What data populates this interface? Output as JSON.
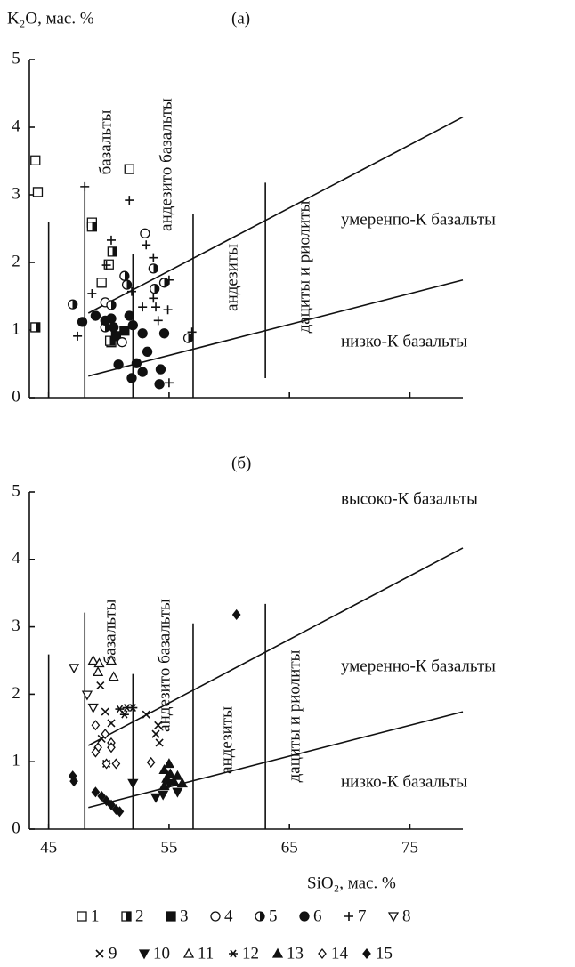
{
  "chart_data": [
    {
      "type": "scatter",
      "panel_label": "(a)",
      "ylabel": "K₂O, мас. %",
      "xlim": [
        43.4,
        79.4
      ],
      "ylim": [
        0,
        5
      ],
      "yticks": [
        0,
        1,
        2,
        3,
        4,
        5
      ],
      "xticks": [
        45,
        55,
        65,
        75
      ],
      "xtick_labels": false,
      "annotations": [
        "базальты",
        "андезито базальты",
        "андезиты",
        "дациты и риолиты",
        "умеренпо-К базальты",
        "низко-К базальты"
      ],
      "boundaries": [
        {
          "x": [
            45,
            45
          ],
          "y": [
            0,
            2.6
          ]
        },
        {
          "x": [
            48,
            48
          ],
          "y": [
            0,
            3.18
          ]
        },
        {
          "x": [
            52,
            52
          ],
          "y": [
            0,
            2.13
          ]
        },
        {
          "x": [
            57,
            57
          ],
          "y": [
            0,
            2.72
          ]
        },
        {
          "x": [
            63,
            63
          ],
          "y": [
            0.29,
            3.18
          ]
        },
        {
          "x": [
            48.3,
            79.4
          ],
          "y": [
            1.25,
            4.15
          ]
        },
        {
          "x": [
            48.3,
            79.4
          ],
          "y": [
            0.32,
            1.74
          ]
        }
      ],
      "series": [
        {
          "name": "1",
          "marker": "square",
          "fill": "open",
          "color": "#111",
          "x": [
            43.9,
            44.1,
            48.6,
            51.7,
            49.4,
            50.2,
            50.0
          ],
          "y": [
            3.51,
            3.04,
            2.59,
            3.38,
            1.7,
            0.82,
            1.97
          ]
        },
        {
          "name": "2",
          "marker": "square",
          "fill": "half",
          "color": "#111",
          "x": [
            43.9,
            48.6,
            50.3,
            50.1
          ],
          "y": [
            1.04,
            2.53,
            2.16,
            0.84
          ]
        },
        {
          "name": "3",
          "marker": "square",
          "fill": "filled",
          "color": "#111",
          "x": [
            51.3,
            50.6
          ],
          "y": [
            0.99,
            0.91
          ]
        },
        {
          "name": "4",
          "marker": "circle",
          "fill": "open",
          "color": "#111",
          "x": [
            53.0,
            49.7,
            51.1
          ],
          "y": [
            2.43,
            1.41,
            0.82
          ]
        },
        {
          "name": "5",
          "marker": "circle",
          "fill": "half",
          "color": "#111",
          "x": [
            47.0,
            51.3,
            51.5,
            53.7,
            53.8,
            54.6,
            50.2,
            56.6,
            49.7
          ],
          "y": [
            1.38,
            1.8,
            1.67,
            1.91,
            1.61,
            1.7,
            1.37,
            0.88,
            1.04
          ]
        },
        {
          "name": "6",
          "marker": "circle",
          "fill": "filled",
          "color": "#111",
          "x": [
            47.8,
            48.9,
            50.2,
            51.7,
            52.0,
            52.8,
            54.6,
            50.8,
            51.9,
            52.8,
            53.2,
            54.3,
            54.2,
            52.3,
            49.7,
            50.4
          ],
          "y": [
            1.12,
            1.21,
            1.17,
            1.21,
            1.07,
            0.95,
            0.95,
            0.49,
            0.29,
            0.38,
            0.68,
            0.42,
            0.2,
            0.51,
            1.14,
            1.04
          ]
        },
        {
          "name": "7",
          "marker": "plus",
          "fill": "open",
          "color": "#111",
          "x": [
            48.0,
            51.7,
            50.2,
            49.8,
            53.1,
            48.6,
            51.9,
            47.4,
            53.9,
            54.1,
            53.7,
            54.9,
            55.0,
            53.7,
            56.9,
            55.0,
            52.8
          ],
          "y": [
            3.12,
            2.92,
            2.33,
            1.96,
            2.26,
            1.54,
            1.57,
            0.91,
            1.34,
            1.14,
            1.47,
            1.3,
            1.74,
            2.07,
            0.97,
            0.22,
            1.34
          ]
        }
      ]
    },
    {
      "type": "scatter",
      "panel_label": "(б)",
      "xlabel": "SiO₂, мас. %",
      "xlim": [
        43.4,
        79.4
      ],
      "ylim": [
        0,
        5
      ],
      "yticks": [
        0,
        1,
        2,
        3,
        4,
        5
      ],
      "xticks": [
        45,
        55,
        65,
        75
      ],
      "xtick_labels": true,
      "annotations": [
        "высоко-К базальты",
        "базальты",
        "андезито базальты",
        "андезиты",
        "дациты и риолиты",
        "умеренно-К базальты",
        "низко-К базальты"
      ],
      "boundaries": [
        {
          "x": [
            45,
            45
          ],
          "y": [
            0,
            2.59
          ]
        },
        {
          "x": [
            48,
            48
          ],
          "y": [
            0,
            3.21
          ]
        },
        {
          "x": [
            52,
            52
          ],
          "y": [
            0,
            2.3
          ]
        },
        {
          "x": [
            57,
            57
          ],
          "y": [
            0,
            3.05
          ]
        },
        {
          "x": [
            63,
            63
          ],
          "y": [
            0,
            3.34
          ]
        },
        {
          "x": [
            48.3,
            79.4
          ],
          "y": [
            1.24,
            4.17
          ]
        },
        {
          "x": [
            48.3,
            79.4
          ],
          "y": [
            0.32,
            1.74
          ]
        }
      ],
      "series": [
        {
          "name": "8",
          "marker": "tri-down",
          "fill": "open",
          "color": "#111",
          "x": [
            47.1,
            48.2,
            48.7
          ],
          "y": [
            2.39,
            1.99,
            1.8
          ]
        },
        {
          "name": "9",
          "marker": "cross",
          "fill": "open",
          "color": "#111",
          "x": [
            49.4,
            50.2,
            49.8,
            53.1,
            54.1,
            54.2,
            53.9,
            49.3,
            49.7
          ],
          "y": [
            1.34,
            1.57,
            0.97,
            1.7,
            1.54,
            1.28,
            1.41,
            2.13,
            1.74
          ]
        },
        {
          "name": "10",
          "marker": "tri-down",
          "fill": "filled",
          "color": "#111",
          "x": [
            52.0,
            54.5,
            55.0,
            55.7,
            53.9
          ],
          "y": [
            0.68,
            0.51,
            0.68,
            0.55,
            0.47
          ]
        },
        {
          "name": "11",
          "marker": "tri-up",
          "fill": "open",
          "color": "#111",
          "x": [
            48.7,
            49.2,
            50.2,
            50.4,
            49.1
          ],
          "y": [
            2.5,
            2.46,
            2.5,
            2.26,
            2.33
          ]
        },
        {
          "name": "12",
          "marker": "asterisk",
          "fill": "open",
          "color": "#111",
          "x": [
            50.9,
            51.5,
            52.0,
            51.3
          ],
          "y": [
            1.78,
            1.8,
            1.8,
            1.7
          ]
        },
        {
          "name": "13",
          "marker": "tri-up",
          "fill": "filled",
          "color": "#111",
          "x": [
            54.6,
            55.1,
            55.4,
            55.7,
            56.1,
            54.8,
            55.0,
            54.6
          ],
          "y": [
            0.88,
            0.82,
            0.71,
            0.79,
            0.68,
            0.75,
            0.97,
            0.64
          ]
        },
        {
          "name": "14",
          "marker": "diamond",
          "fill": "open",
          "color": "#111",
          "x": [
            48.9,
            49.7,
            50.2,
            49.1,
            49.8,
            50.6,
            50.2,
            53.5,
            48.9
          ],
          "y": [
            1.54,
            1.41,
            1.28,
            1.21,
            0.97,
            0.97,
            1.21,
            0.99,
            1.14
          ]
        },
        {
          "name": "15",
          "marker": "diamond",
          "fill": "filled",
          "color": "#111",
          "x": [
            47.0,
            47.1,
            48.9,
            49.8,
            50.2,
            50.6,
            50.9,
            49.4,
            60.6
          ],
          "y": [
            0.79,
            0.71,
            0.55,
            0.42,
            0.36,
            0.29,
            0.26,
            0.49,
            3.18
          ]
        }
      ]
    }
  ]
}
